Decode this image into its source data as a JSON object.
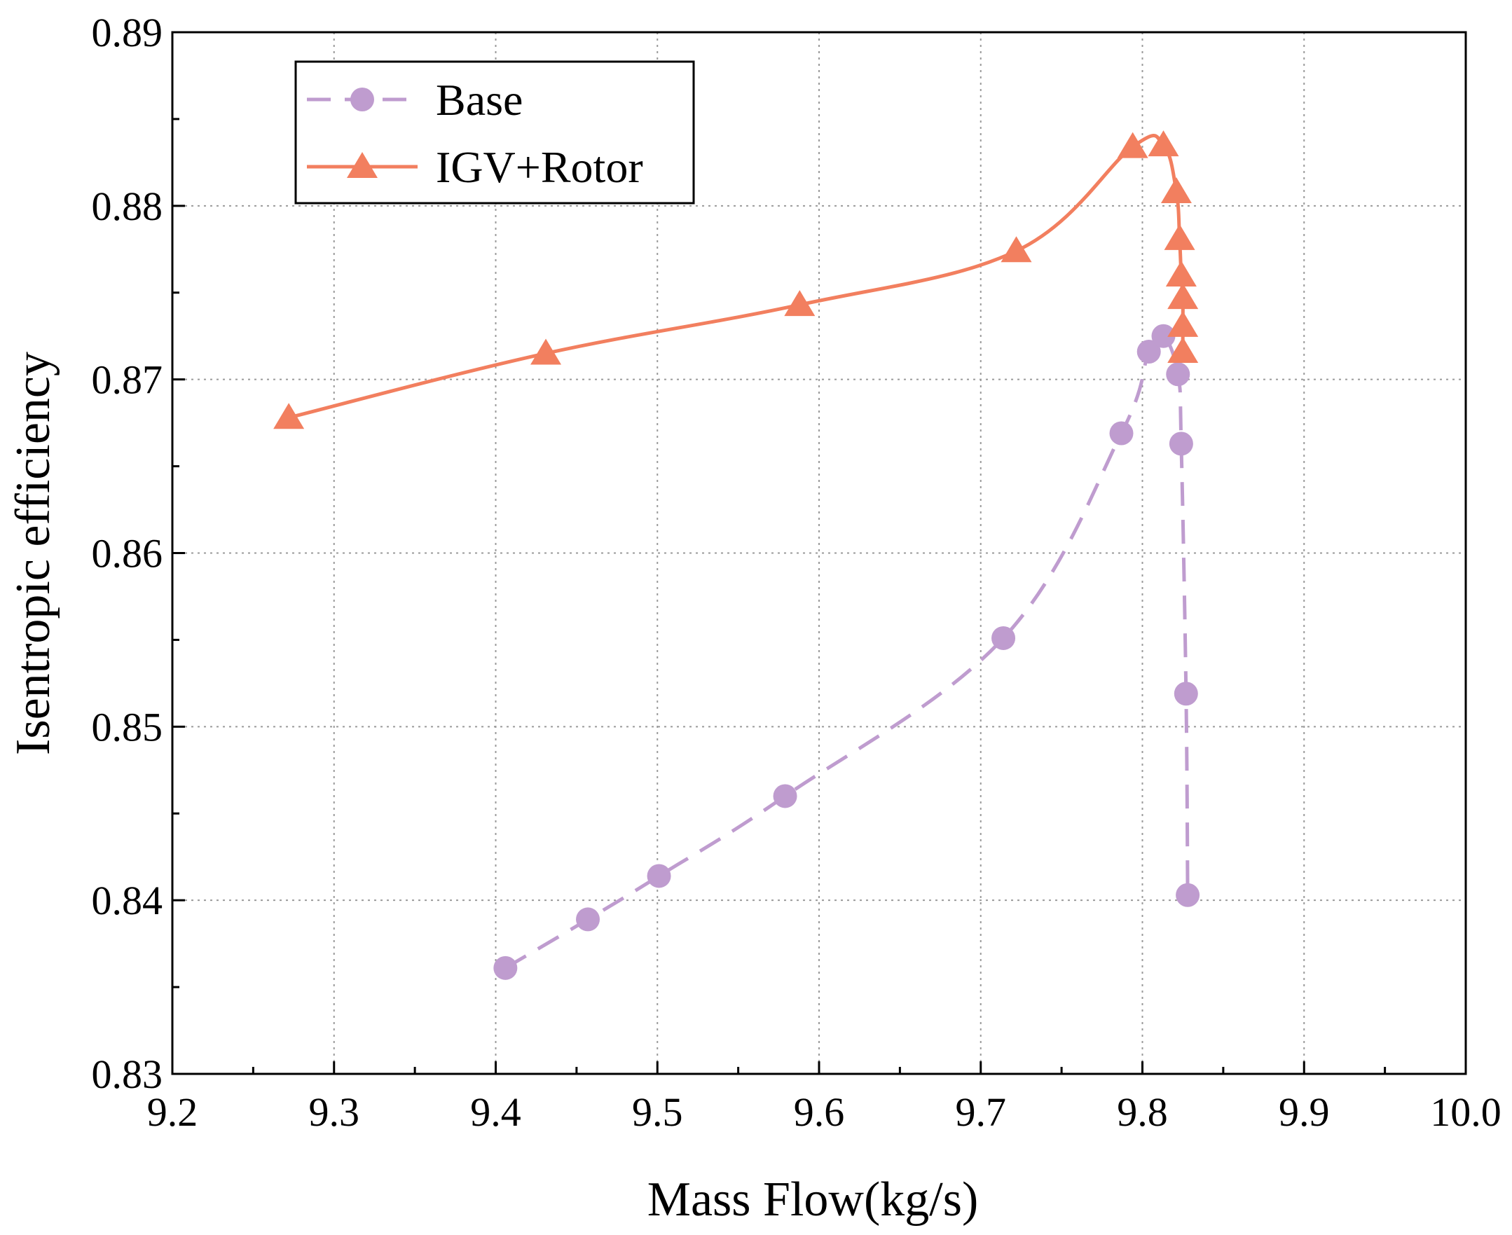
{
  "chart_data": {
    "type": "line",
    "xlabel": "Mass Flow(kg/s)",
    "ylabel": "Isentropic efficiency",
    "xlim": [
      9.2,
      10.0
    ],
    "ylim": [
      0.83,
      0.89
    ],
    "xticks": [
      "9.2",
      "9.3",
      "9.4",
      "9.5",
      "9.6",
      "9.7",
      "9.8",
      "9.9",
      "10.0"
    ],
    "yticks": [
      "0.83",
      "0.84",
      "0.85",
      "0.86",
      "0.87",
      "0.88",
      "0.89"
    ],
    "grid": true,
    "legend": "top-left",
    "series": [
      {
        "name": "Base",
        "color": "#bf9ccf",
        "line_style": "dashed",
        "marker": "circle",
        "x": [
          9.406,
          9.457,
          9.501,
          9.579,
          9.714,
          9.787,
          9.804,
          9.813,
          9.822,
          9.824,
          9.827,
          9.828
        ],
        "y": [
          0.8361,
          0.8389,
          0.8414,
          0.846,
          0.8551,
          0.8669,
          0.8716,
          0.8725,
          0.8703,
          0.8663,
          0.8519,
          0.8403
        ]
      },
      {
        "name": "IGV+Rotor",
        "color": "#f27f5f",
        "line_style": "solid",
        "marker": "triangle",
        "x": [
          9.272,
          9.431,
          9.588,
          9.722,
          9.794,
          9.813,
          9.821,
          9.823,
          9.824,
          9.825,
          9.825,
          9.825
        ],
        "y": [
          0.8678,
          0.8715,
          0.8743,
          0.8774,
          0.8834,
          0.8835,
          0.8808,
          0.8781,
          0.876,
          0.8747,
          0.8731,
          0.8716
        ]
      }
    ]
  }
}
